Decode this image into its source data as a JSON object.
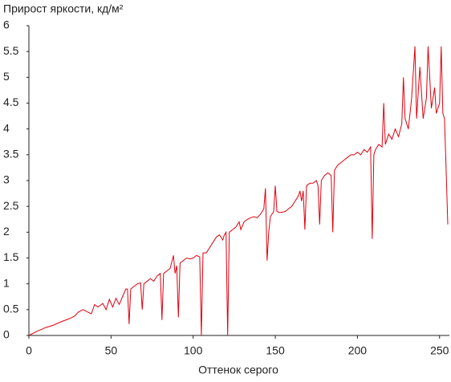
{
  "chart_data": {
    "type": "line",
    "title": "Прирост яркости, кд/м²",
    "x_label": "Оттенок серого",
    "xlim": [
      0,
      255
    ],
    "xticks": [
      0,
      50,
      100,
      150,
      200,
      250
    ],
    "ylim": [
      0,
      6
    ],
    "yticks": [
      0,
      0.5,
      1,
      1.5,
      2,
      2.5,
      3,
      3.5,
      4,
      4.5,
      5,
      5.5,
      6
    ],
    "grid": false,
    "series": [
      {
        "color": "#e0000f",
        "x": [
          0,
          5,
          10,
          15,
          20,
          25,
          28,
          30,
          33,
          36,
          38,
          40,
          42,
          45,
          47,
          49,
          51,
          53,
          55,
          57,
          59,
          60,
          61,
          62,
          64,
          66,
          68,
          69,
          70,
          72,
          74,
          76,
          78,
          80,
          81,
          82,
          84,
          86,
          88,
          89,
          90,
          91,
          92,
          94,
          96,
          98,
          100,
          102,
          104,
          105,
          106,
          108,
          110,
          112,
          114,
          116,
          118,
          119,
          120,
          121,
          122,
          124,
          126,
          128,
          129,
          131,
          133,
          135,
          137,
          139,
          141,
          143,
          144,
          145,
          146,
          147,
          149,
          150,
          151,
          153,
          156,
          158,
          160,
          162,
          164,
          165,
          166,
          167,
          168,
          169,
          171,
          173,
          175,
          176,
          177,
          178,
          180,
          182,
          184,
          185,
          186,
          188,
          190,
          192,
          194,
          196,
          198,
          200,
          202,
          204,
          206,
          208,
          209,
          210,
          211,
          213,
          215,
          216,
          217,
          219,
          221,
          223,
          225,
          227,
          228,
          229,
          231,
          233,
          235,
          236,
          238,
          240,
          242,
          243,
          245,
          247,
          248,
          250,
          251,
          252,
          253,
          254,
          255
        ],
        "values": [
          0,
          0.08,
          0.15,
          0.2,
          0.27,
          0.33,
          0.38,
          0.45,
          0.5,
          0.45,
          0.42,
          0.6,
          0.55,
          0.62,
          0.5,
          0.7,
          0.55,
          0.72,
          0.6,
          0.75,
          0.9,
          0.9,
          0.22,
          0.9,
          0.95,
          1.0,
          1.02,
          0.5,
          1.0,
          1.05,
          1.1,
          1.05,
          1.15,
          1.2,
          0.3,
          1.2,
          1.25,
          1.3,
          1.55,
          1.2,
          1.35,
          0.35,
          1.4,
          1.45,
          1.5,
          1.48,
          1.5,
          1.55,
          1.52,
          0,
          1.6,
          1.6,
          1.7,
          1.8,
          1.9,
          1.95,
          1.85,
          1.95,
          2.0,
          0,
          2.0,
          2.05,
          2.1,
          2.2,
          2.05,
          2.2,
          2.25,
          2.28,
          2.3,
          2.28,
          2.35,
          2.45,
          2.85,
          1.45,
          2.0,
          2.3,
          2.4,
          2.9,
          2.4,
          2.38,
          2.4,
          2.45,
          2.5,
          2.6,
          2.7,
          2.8,
          2.6,
          2.8,
          2.05,
          2.9,
          2.95,
          2.95,
          3.0,
          2.9,
          2.15,
          3.0,
          3.1,
          3.15,
          3.1,
          2.0,
          3.2,
          3.3,
          3.35,
          3.4,
          3.45,
          3.5,
          3.5,
          3.55,
          3.5,
          3.6,
          3.55,
          3.65,
          1.87,
          3.5,
          3.6,
          3.7,
          3.65,
          4.5,
          3.7,
          3.9,
          3.8,
          4.0,
          3.85,
          4.1,
          5.0,
          4.2,
          4.0,
          4.6,
          5.6,
          4.2,
          5.2,
          4.2,
          4.6,
          5.6,
          4.4,
          4.8,
          4.3,
          4.5,
          5.6,
          4.3,
          4.2,
          3.2,
          2.15
        ]
      }
    ]
  }
}
